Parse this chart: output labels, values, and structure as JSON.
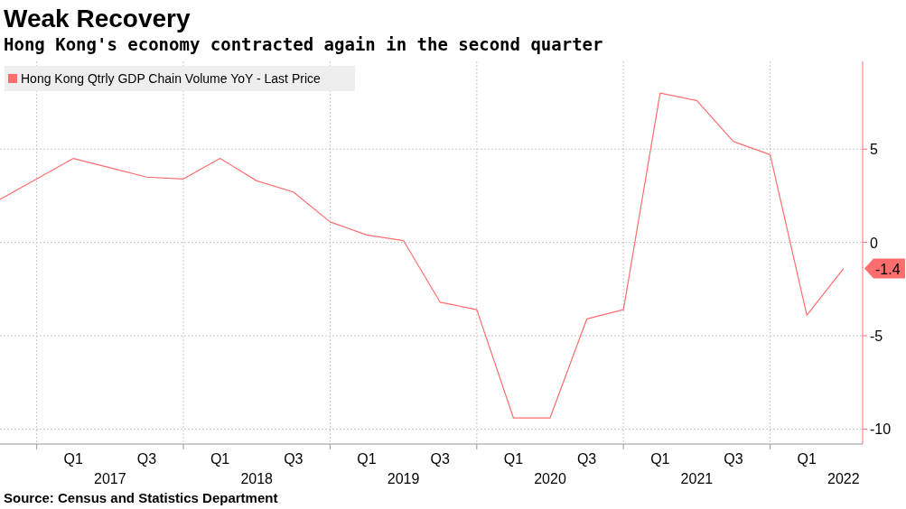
{
  "chart_data": {
    "type": "line",
    "title": "Weak Recovery",
    "subtitle": "Hong Kong's economy contracted again in the second quarter",
    "categories": [
      null,
      null,
      "Q1",
      "2017",
      "Q3",
      null,
      "Q1",
      "2018",
      "Q3",
      null,
      "Q1",
      "2019",
      "Q3",
      null,
      "Q1",
      "2020",
      "Q3",
      null,
      "Q1",
      "2021",
      "Q3",
      null,
      "Q1",
      "2022"
    ],
    "series": [
      {
        "name": "Hong Kong Qtrly GDP Chain Volume YoY - Last Price",
        "color": "#ff6e6e",
        "values": [
          2.3,
          3.4,
          4.5,
          4.0,
          3.5,
          3.4,
          4.5,
          3.3,
          2.7,
          1.1,
          0.4,
          0.1,
          -3.2,
          -3.6,
          -9.4,
          -9.4,
          -4.1,
          -3.6,
          8.0,
          7.6,
          5.4,
          4.7,
          -3.9,
          -1.4
        ]
      }
    ],
    "ylim": [
      -10.8,
      9.7
    ],
    "yticks": [
      -10,
      -5,
      0,
      5
    ],
    "grid": true,
    "legend": "top left",
    "annotations": [
      {
        "text": "-1.4",
        "x": "2022",
        "y": -1.4
      },
      "Source: Census and Statistics Department"
    ]
  }
}
